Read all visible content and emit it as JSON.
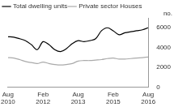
{
  "chart_data": {
    "type": "line",
    "ylabel": "no.",
    "categories": [
      "Aug 2010",
      null,
      null,
      null,
      null,
      null,
      "Feb 2012",
      null,
      null,
      null,
      null,
      null,
      "Aug 2013",
      null,
      null,
      null,
      null,
      null,
      "Feb 2015",
      null,
      null,
      null,
      null,
      null,
      "Aug 2016"
    ],
    "series": [
      {
        "name": "Total dwelling units",
        "color": "#000000",
        "values": [
          5100,
          5050,
          4900,
          4700,
          4300,
          3800,
          4600,
          4300,
          3800,
          3600,
          3900,
          4400,
          4700,
          4600,
          4700,
          4900,
          5700,
          6000,
          5700,
          5300,
          5500,
          5600,
          5700,
          5800,
          6000
        ]
      },
      {
        "name": "Private sector Houses",
        "color": "#aaaaaa",
        "values": [
          3000,
          2950,
          2800,
          2600,
          2500,
          2400,
          2550,
          2400,
          2300,
          2250,
          2300,
          2400,
          2650,
          2700,
          2700,
          2750,
          2800,
          2900,
          2950,
          2850,
          2850,
          2900,
          2950,
          3000,
          3050
        ]
      }
    ],
    "ylim": [
      0,
      7000
    ],
    "yticks": [
      0,
      2000,
      4000,
      6000
    ],
    "grid": false,
    "legend": "top left"
  }
}
